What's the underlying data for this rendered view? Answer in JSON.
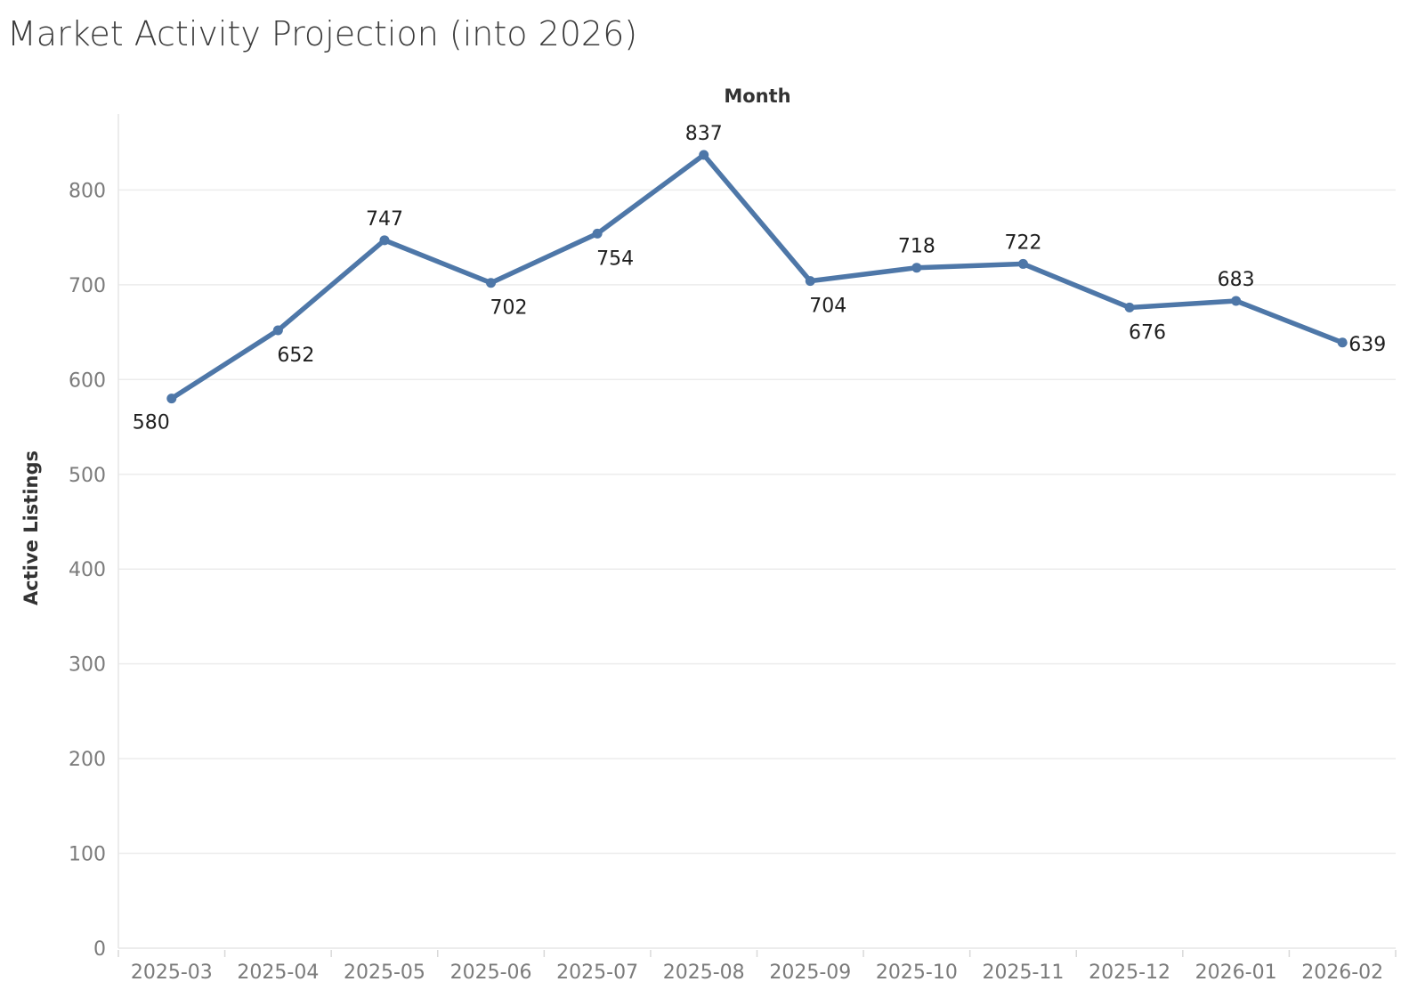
{
  "chart_data": {
    "type": "line",
    "title": "Market Activity Projection (into 2026)",
    "xlabel": "Month",
    "ylabel": "Active Listings",
    "categories": [
      "2025-03",
      "2025-04",
      "2025-05",
      "2025-06",
      "2025-07",
      "2025-08",
      "2025-09",
      "2025-10",
      "2025-11",
      "2025-12",
      "2026-01",
      "2026-02"
    ],
    "series": [
      {
        "values": [
          580,
          652,
          747,
          702,
          754,
          837,
          704,
          718,
          722,
          676,
          683,
          639
        ],
        "label_positions": [
          "below",
          "below",
          "above",
          "below",
          "below",
          "above",
          "below",
          "above",
          "above",
          "below",
          "above",
          "right"
        ]
      }
    ],
    "ylim": [
      0,
      880
    ],
    "yticks": [
      0,
      100,
      200,
      300,
      400,
      500,
      600,
      700,
      800
    ],
    "grid": true,
    "xlabel_position": "top",
    "legend": "none",
    "colors": {
      "series": "#4e77a8",
      "grid": "#ececec"
    }
  }
}
